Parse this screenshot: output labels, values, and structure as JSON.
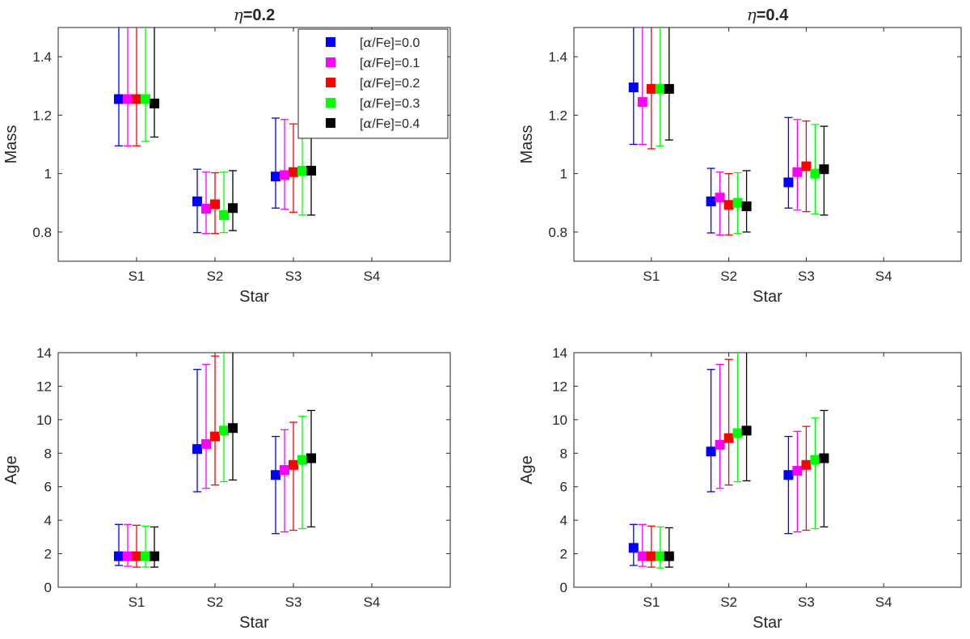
{
  "colors": {
    "axis": "#262626",
    "background": "#ffffff"
  },
  "legend": {
    "location": "top-right",
    "entries": [
      {
        "pre": "[",
        "alpha": "α",
        "post": "/Fe]=0.0",
        "color": "#0000ff"
      },
      {
        "pre": "[",
        "alpha": "α",
        "post": "/Fe]=0.1",
        "color": "#ff00ff"
      },
      {
        "pre": "[",
        "alpha": "α",
        "post": "/Fe]=0.2",
        "color": "#ff0000"
      },
      {
        "pre": "[",
        "alpha": "α",
        "post": "/Fe]=0.3",
        "color": "#00ff00"
      },
      {
        "pre": "[",
        "alpha": "α",
        "post": "/Fe]=0.4",
        "color": "#000000"
      }
    ]
  },
  "chart_data": [
    {
      "type": "errorbar",
      "title_symbol": "η",
      "title_value": "=0.2",
      "xlabel": "Star",
      "ylabel": "Mass",
      "categories": [
        "S1",
        "S2",
        "S3",
        "S4"
      ],
      "ylim": [
        0.7,
        1.5
      ],
      "yticks": [
        0.8,
        1,
        1.2,
        1.4
      ],
      "ytick_labels": [
        "0.8",
        "1",
        "1.2",
        "1.4"
      ],
      "show_legend": true,
      "series": [
        {
          "name": "[α/Fe]=0.0",
          "color": "#0000ff",
          "points": [
            {
              "star": "S1",
              "value": 1.255,
              "low": 1.095,
              "high": 1.5
            },
            {
              "star": "S2",
              "value": 0.905,
              "low": 0.798,
              "high": 1.015
            },
            {
              "star": "S3",
              "value": 0.99,
              "low": 0.882,
              "high": 1.19
            }
          ]
        },
        {
          "name": "[α/Fe]=0.1",
          "color": "#ff00ff",
          "points": [
            {
              "star": "S1",
              "value": 1.255,
              "low": 1.095,
              "high": 1.5
            },
            {
              "star": "S2",
              "value": 0.88,
              "low": 0.795,
              "high": 1.005
            },
            {
              "star": "S3",
              "value": 0.995,
              "low": 0.878,
              "high": 1.185
            }
          ]
        },
        {
          "name": "[α/Fe]=0.2",
          "color": "#ff0000",
          "points": [
            {
              "star": "S1",
              "value": 1.255,
              "low": 1.095,
              "high": 1.5
            },
            {
              "star": "S2",
              "value": 0.895,
              "low": 0.795,
              "high": 1.003
            },
            {
              "star": "S3",
              "value": 1.005,
              "low": 0.868,
              "high": 1.17
            }
          ]
        },
        {
          "name": "[α/Fe]=0.3",
          "color": "#00ff00",
          "points": [
            {
              "star": "S1",
              "value": 1.255,
              "low": 1.11,
              "high": 1.5
            },
            {
              "star": "S2",
              "value": 0.858,
              "low": 0.798,
              "high": 1.005
            },
            {
              "star": "S3",
              "value": 1.01,
              "low": 0.858,
              "high": 1.165
            }
          ]
        },
        {
          "name": "[α/Fe]=0.4",
          "color": "#000000",
          "points": [
            {
              "star": "S1",
              "value": 1.24,
              "low": 1.125,
              "high": 1.5
            },
            {
              "star": "S2",
              "value": 0.882,
              "low": 0.805,
              "high": 1.01
            },
            {
              "star": "S3",
              "value": 1.01,
              "low": 0.858,
              "high": 1.165
            }
          ]
        }
      ]
    },
    {
      "type": "errorbar",
      "title_symbol": "η",
      "title_value": "=0.4",
      "xlabel": "Star",
      "ylabel": "Mass",
      "categories": [
        "S1",
        "S2",
        "S3",
        "S4"
      ],
      "ylim": [
        0.7,
        1.5
      ],
      "yticks": [
        0.8,
        1,
        1.2,
        1.4
      ],
      "ytick_labels": [
        "0.8",
        "1",
        "1.2",
        "1.4"
      ],
      "show_legend": false,
      "series": [
        {
          "name": "[α/Fe]=0.0",
          "color": "#0000ff",
          "points": [
            {
              "star": "S1",
              "value": 1.295,
              "low": 1.1,
              "high": 1.5
            },
            {
              "star": "S2",
              "value": 0.905,
              "low": 0.797,
              "high": 1.018
            },
            {
              "star": "S3",
              "value": 0.97,
              "low": 0.882,
              "high": 1.192
            }
          ]
        },
        {
          "name": "[α/Fe]=0.1",
          "color": "#ff00ff",
          "points": [
            {
              "star": "S1",
              "value": 1.245,
              "low": 1.1,
              "high": 1.5
            },
            {
              "star": "S2",
              "value": 0.918,
              "low": 0.79,
              "high": 1.005
            },
            {
              "star": "S3",
              "value": 1.005,
              "low": 0.875,
              "high": 1.185
            }
          ]
        },
        {
          "name": "[α/Fe]=0.2",
          "color": "#ff0000",
          "points": [
            {
              "star": "S1",
              "value": 1.29,
              "low": 1.085,
              "high": 1.5
            },
            {
              "star": "S2",
              "value": 0.893,
              "low": 0.79,
              "high": 1.0
            },
            {
              "star": "S3",
              "value": 1.025,
              "low": 0.87,
              "high": 1.18
            }
          ]
        },
        {
          "name": "[α/Fe]=0.3",
          "color": "#00ff00",
          "points": [
            {
              "star": "S1",
              "value": 1.29,
              "low": 1.095,
              "high": 1.5
            },
            {
              "star": "S2",
              "value": 0.9,
              "low": 0.795,
              "high": 1.003
            },
            {
              "star": "S3",
              "value": 1.0,
              "low": 0.862,
              "high": 1.168
            }
          ]
        },
        {
          "name": "[α/Fe]=0.4",
          "color": "#000000",
          "points": [
            {
              "star": "S1",
              "value": 1.29,
              "low": 1.115,
              "high": 1.5
            },
            {
              "star": "S2",
              "value": 0.888,
              "low": 0.8,
              "high": 1.01
            },
            {
              "star": "S3",
              "value": 1.015,
              "low": 0.858,
              "high": 1.162
            }
          ]
        }
      ]
    },
    {
      "type": "errorbar",
      "title_symbol": "",
      "title_value": "",
      "xlabel": "Star",
      "ylabel": "Age",
      "categories": [
        "S1",
        "S2",
        "S3",
        "S4"
      ],
      "ylim": [
        0,
        14
      ],
      "yticks": [
        0,
        2,
        4,
        6,
        8,
        10,
        12,
        14
      ],
      "ytick_labels": [
        "0",
        "2",
        "4",
        "6",
        "8",
        "10",
        "12",
        "14"
      ],
      "show_legend": false,
      "series": [
        {
          "name": "[α/Fe]=0.0",
          "color": "#0000ff",
          "points": [
            {
              "star": "S1",
              "value": 1.85,
              "low": 1.3,
              "high": 3.75
            },
            {
              "star": "S2",
              "value": 8.25,
              "low": 5.7,
              "high": 13.0
            },
            {
              "star": "S3",
              "value": 6.7,
              "low": 3.2,
              "high": 9.0
            }
          ]
        },
        {
          "name": "[α/Fe]=0.1",
          "color": "#ff00ff",
          "points": [
            {
              "star": "S1",
              "value": 1.85,
              "low": 1.25,
              "high": 3.75
            },
            {
              "star": "S2",
              "value": 8.55,
              "low": 5.9,
              "high": 13.3
            },
            {
              "star": "S3",
              "value": 7.0,
              "low": 3.3,
              "high": 9.4
            }
          ]
        },
        {
          "name": "[α/Fe]=0.2",
          "color": "#ff0000",
          "points": [
            {
              "star": "S1",
              "value": 1.85,
              "low": 1.2,
              "high": 3.7
            },
            {
              "star": "S2",
              "value": 9.0,
              "low": 6.1,
              "high": 13.8
            },
            {
              "star": "S3",
              "value": 7.3,
              "low": 3.4,
              "high": 9.85
            }
          ]
        },
        {
          "name": "[α/Fe]=0.3",
          "color": "#00ff00",
          "points": [
            {
              "star": "S1",
              "value": 1.85,
              "low": 1.2,
              "high": 3.65
            },
            {
              "star": "S2",
              "value": 9.35,
              "low": 6.3,
              "high": 14.0
            },
            {
              "star": "S3",
              "value": 7.6,
              "low": 3.5,
              "high": 10.2
            }
          ]
        },
        {
          "name": "[α/Fe]=0.4",
          "color": "#000000",
          "points": [
            {
              "star": "S1",
              "value": 1.85,
              "low": 1.2,
              "high": 3.6
            },
            {
              "star": "S2",
              "value": 9.5,
              "low": 6.4,
              "high": 14.0
            },
            {
              "star": "S3",
              "value": 7.7,
              "low": 3.6,
              "high": 10.55
            }
          ]
        }
      ]
    },
    {
      "type": "errorbar",
      "title_symbol": "",
      "title_value": "",
      "xlabel": "Star",
      "ylabel": "Age",
      "categories": [
        "S1",
        "S2",
        "S3",
        "S4"
      ],
      "ylim": [
        0,
        14
      ],
      "yticks": [
        0,
        2,
        4,
        6,
        8,
        10,
        12,
        14
      ],
      "ytick_labels": [
        "0",
        "2",
        "4",
        "6",
        "8",
        "10",
        "12",
        "14"
      ],
      "show_legend": false,
      "series": [
        {
          "name": "[α/Fe]=0.0",
          "color": "#0000ff",
          "points": [
            {
              "star": "S1",
              "value": 2.35,
              "low": 1.3,
              "high": 3.75
            },
            {
              "star": "S2",
              "value": 8.1,
              "low": 5.7,
              "high": 13.0
            },
            {
              "star": "S3",
              "value": 6.7,
              "low": 3.2,
              "high": 9.0
            }
          ]
        },
        {
          "name": "[α/Fe]=0.1",
          "color": "#ff00ff",
          "points": [
            {
              "star": "S1",
              "value": 1.85,
              "low": 1.25,
              "high": 3.75
            },
            {
              "star": "S2",
              "value": 8.5,
              "low": 5.9,
              "high": 13.3
            },
            {
              "star": "S3",
              "value": 6.95,
              "low": 3.3,
              "high": 9.3
            }
          ]
        },
        {
          "name": "[α/Fe]=0.2",
          "color": "#ff0000",
          "points": [
            {
              "star": "S1",
              "value": 1.85,
              "low": 1.2,
              "high": 3.65
            },
            {
              "star": "S2",
              "value": 8.9,
              "low": 6.1,
              "high": 13.6
            },
            {
              "star": "S3",
              "value": 7.3,
              "low": 3.4,
              "high": 9.6
            }
          ]
        },
        {
          "name": "[α/Fe]=0.3",
          "color": "#00ff00",
          "points": [
            {
              "star": "S1",
              "value": 1.85,
              "low": 1.15,
              "high": 3.6
            },
            {
              "star": "S2",
              "value": 9.2,
              "low": 6.3,
              "high": 14.0
            },
            {
              "star": "S3",
              "value": 7.6,
              "low": 3.5,
              "high": 10.1
            }
          ]
        },
        {
          "name": "[α/Fe]=0.4",
          "color": "#000000",
          "points": [
            {
              "star": "S1",
              "value": 1.85,
              "low": 1.2,
              "high": 3.55
            },
            {
              "star": "S2",
              "value": 9.35,
              "low": 6.35,
              "high": 14.0
            },
            {
              "star": "S3",
              "value": 7.7,
              "low": 3.6,
              "high": 10.55
            }
          ]
        }
      ]
    }
  ]
}
